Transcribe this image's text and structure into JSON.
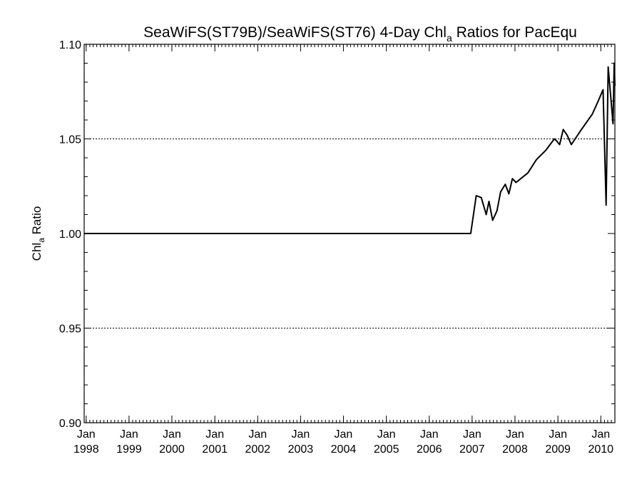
{
  "chart_data": {
    "type": "line",
    "title": "SeaWiFS(ST79B)/SeaWiFS(ST76) 4-Day Chl",
    "title_sub": "a",
    "title_rest": " Ratios for PacEqu",
    "ylabel": "Chl",
    "ylabel_sub": "a",
    "ylabel_rest": " Ratio",
    "ylim": [
      0.9,
      1.1
    ],
    "yticks": [
      {
        "value": 0.9,
        "label": "0.90"
      },
      {
        "value": 0.95,
        "label": "0.95"
      },
      {
        "value": 1.0,
        "label": "1.00"
      },
      {
        "value": 1.05,
        "label": "1.05"
      },
      {
        "value": 1.1,
        "label": "1.10"
      }
    ],
    "xlim": [
      "1997-12-15",
      "2010-05-01"
    ],
    "xticks": [
      {
        "date": "1998-01-01",
        "month": "Jan",
        "year": "1998"
      },
      {
        "date": "1999-01-01",
        "month": "Jan",
        "year": "1999"
      },
      {
        "date": "2000-01-01",
        "month": "Jan",
        "year": "2000"
      },
      {
        "date": "2001-01-01",
        "month": "Jan",
        "year": "2001"
      },
      {
        "date": "2002-01-01",
        "month": "Jan",
        "year": "2002"
      },
      {
        "date": "2003-01-01",
        "month": "Jan",
        "year": "2003"
      },
      {
        "date": "2004-01-01",
        "month": "Jan",
        "year": "2004"
      },
      {
        "date": "2005-01-01",
        "month": "Jan",
        "year": "2005"
      },
      {
        "date": "2006-01-01",
        "month": "Jan",
        "year": "2006"
      },
      {
        "date": "2007-01-01",
        "month": "Jan",
        "year": "2007"
      },
      {
        "date": "2008-01-01",
        "month": "Jan",
        "year": "2008"
      },
      {
        "date": "2009-01-01",
        "month": "Jan",
        "year": "2009"
      },
      {
        "date": "2010-01-01",
        "month": "Jan",
        "year": "2010"
      }
    ],
    "reference_lines": [
      0.95,
      1.05,
      1.1
    ],
    "series": [
      {
        "color": "#000000",
        "points": [
          [
            "1997-12-15",
            1.0
          ],
          [
            "2006-12-20",
            1.0
          ],
          [
            "2007-02-05",
            1.02
          ],
          [
            "2007-03-20",
            1.019
          ],
          [
            "2007-05-01",
            1.01
          ],
          [
            "2007-05-25",
            1.017
          ],
          [
            "2007-06-25",
            1.007
          ],
          [
            "2007-08-01",
            1.012
          ],
          [
            "2007-09-01",
            1.022
          ],
          [
            "2007-10-10",
            1.026
          ],
          [
            "2007-11-10",
            1.021
          ],
          [
            "2007-12-10",
            1.029
          ],
          [
            "2008-01-10",
            1.027
          ],
          [
            "2008-04-20",
            1.032
          ],
          [
            "2008-07-01",
            1.039
          ],
          [
            "2008-09-20",
            1.044
          ],
          [
            "2008-12-01",
            1.05
          ],
          [
            "2008-12-20",
            1.049
          ],
          [
            "2009-01-15",
            1.047
          ],
          [
            "2009-02-15",
            1.055
          ],
          [
            "2009-03-20",
            1.052
          ],
          [
            "2009-04-25",
            1.047
          ],
          [
            "2009-07-20",
            1.055
          ],
          [
            "2009-10-20",
            1.063
          ],
          [
            "2009-12-10",
            1.07
          ],
          [
            "2010-01-20",
            1.076
          ],
          [
            "2010-02-15",
            1.015
          ],
          [
            "2010-03-05",
            1.088
          ],
          [
            "2010-03-30",
            1.07
          ],
          [
            "2010-04-15",
            1.058
          ],
          [
            "2010-04-25",
            1.09
          ],
          [
            "2010-05-01",
            1.078
          ]
        ]
      }
    ]
  }
}
